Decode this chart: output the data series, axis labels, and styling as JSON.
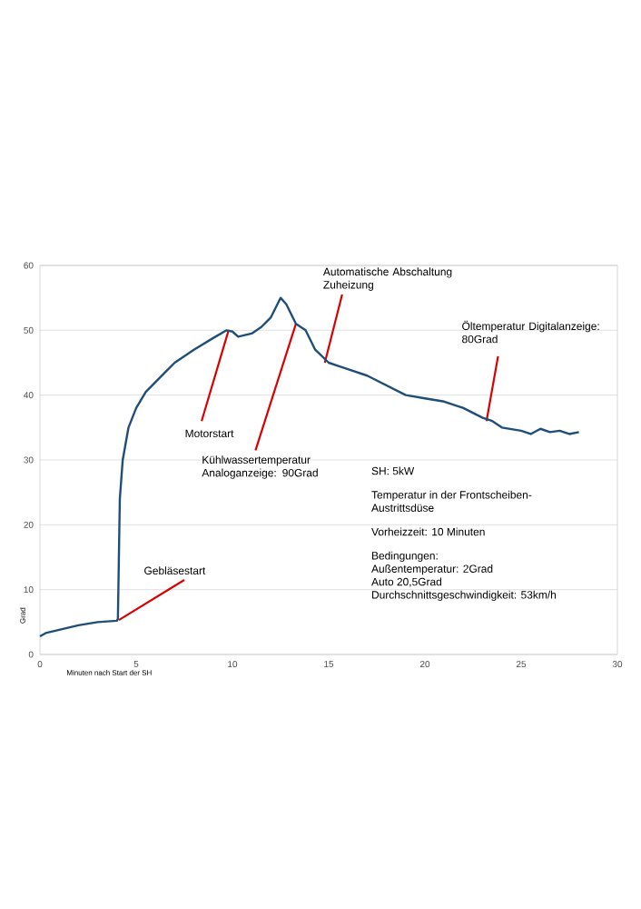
{
  "chart_data": {
    "type": "line",
    "xlabel": "Minuten nach Start der SH",
    "ylabel": "Grad",
    "xlim": [
      0,
      30
    ],
    "ylim": [
      0,
      60
    ],
    "xticks": [
      0,
      5,
      10,
      15,
      20,
      25,
      30
    ],
    "yticks": [
      0,
      10,
      20,
      30,
      40,
      50,
      60
    ],
    "grid": "y",
    "marker": "none",
    "line_style": "solid",
    "series": [
      {
        "color": "#1f4e79",
        "x": [
          0,
          0.3,
          1,
          2,
          3,
          4,
          4.05,
          4.15,
          4.3,
          4.6,
          5,
          5.5,
          6,
          6.5,
          7,
          8,
          9,
          9.7,
          10,
          10.3,
          10.7,
          11,
          11.5,
          12,
          12.5,
          12.8,
          13.3,
          13.8,
          14.3,
          15,
          15.5,
          16,
          17,
          18,
          19,
          20,
          21,
          22,
          23,
          23.5,
          24,
          25,
          25.5,
          26,
          26.5,
          27,
          27.5,
          28
        ],
        "values": [
          2.8,
          3.3,
          3.8,
          4.5,
          5,
          5.2,
          5.5,
          24,
          30,
          35,
          38,
          40.5,
          42,
          43.5,
          45,
          47,
          48.8,
          50,
          49.8,
          49,
          49.3,
          49.5,
          50.5,
          52,
          55,
          54,
          51,
          50,
          47,
          45,
          44.5,
          44,
          43,
          41.5,
          40,
          39.5,
          39,
          38,
          36.5,
          36,
          35,
          34.5,
          34,
          34.8,
          34.3,
          34.5,
          34,
          34.3
        ]
      }
    ],
    "annotations": [
      {
        "text": "Gebläsestart",
        "x": 4.1,
        "y": 5.3
      },
      {
        "text": "Motorstart",
        "x": 9.8,
        "y": 50
      },
      {
        "text": "Kühlwassertemperatur Analoganzeige: 90Grad",
        "x": 13.3,
        "y": 51
      },
      {
        "text": "Automatische Abschaltung Zuheizung",
        "x": 14.8,
        "y": 45
      },
      {
        "text": "Öltemperatur Digitalanzeige: 80Grad",
        "x": 23.2,
        "y": 36
      },
      "SH: 5kW",
      "Temperatur in der Frontscheiben-",
      "Austrittsdüse",
      "Vorheizzeit: 10 Minuten",
      "Bedingungen:",
      "Außentemperatur: 2Grad",
      "Auto 20,5Grad",
      "Durchschnittsgeschwindigkeit: 53km/h"
    ]
  }
}
